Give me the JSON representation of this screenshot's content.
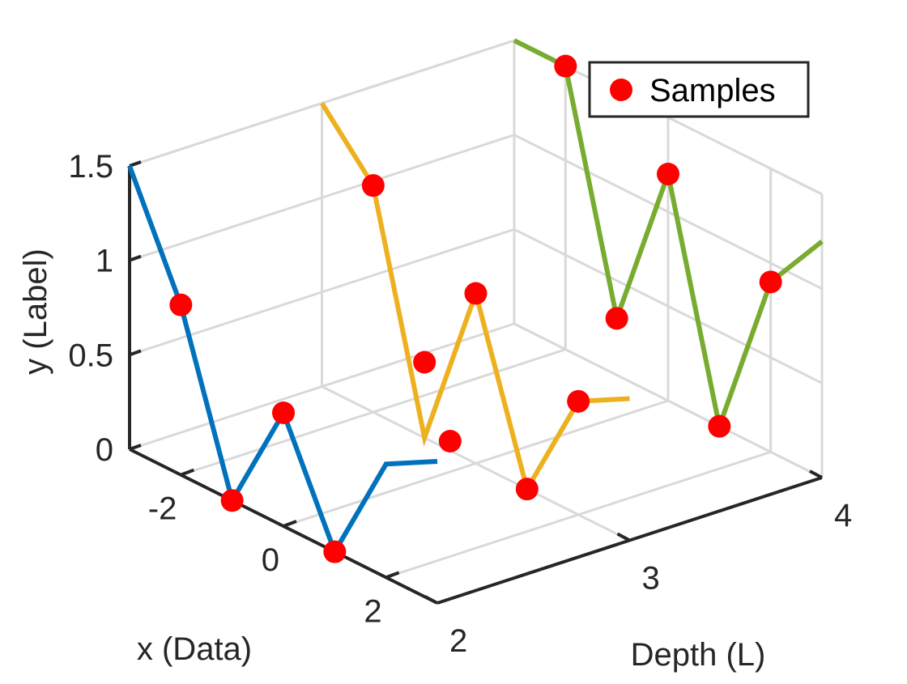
{
  "chart_data": {
    "type": "line",
    "view": "3d",
    "title": "",
    "xlabel": "x (Data)",
    "ylabel": "y (Label)",
    "zlabel": "Depth (L)",
    "xlim": [
      -3,
      3
    ],
    "ylim": [
      0,
      1.5
    ],
    "depth_lim": [
      2,
      4
    ],
    "x_ticks": [
      "-2",
      "0",
      "2"
    ],
    "y_ticks": [
      "0",
      "0.5",
      "1",
      "1.5"
    ],
    "depth_ticks": [
      "2",
      "3",
      "4"
    ],
    "grid": true,
    "legend": {
      "position": "top-right",
      "entries": [
        "Samples"
      ]
    },
    "series": [
      {
        "depth": 2,
        "color": "#0072BD",
        "x": [
          -3,
          -2,
          -1,
          0,
          1,
          2,
          3
        ],
        "y": [
          1.5,
          0.9,
          0,
          0.6,
          0,
          0.6,
          0.75
        ]
      },
      {
        "depth": 3,
        "color": "#EDB120",
        "x": [
          -3,
          -2,
          -1,
          0,
          1,
          2,
          3
        ],
        "y": [
          1.5,
          1.2,
          0,
          0.9,
          0,
          0.6,
          0.75
        ]
      },
      {
        "depth": 4,
        "color": "#77AC30",
        "x": [
          -3,
          -2,
          -1,
          0,
          1,
          2,
          3
        ],
        "y": [
          1.5,
          1.5,
          0.3,
          1.2,
          0,
          0.9,
          1.25
        ]
      }
    ],
    "samples": {
      "name": "Samples",
      "color": "#FF0000",
      "points": [
        {
          "x": -2,
          "y": 0.9,
          "depth": 2
        },
        {
          "x": -1,
          "y": 0,
          "depth": 2
        },
        {
          "x": 0,
          "y": 0.6,
          "depth": 2
        },
        {
          "x": 1,
          "y": 0,
          "depth": 2
        },
        {
          "x": -2,
          "y": 1.2,
          "depth": 3
        },
        {
          "x": -1,
          "y": 0.4,
          "depth": 3
        },
        {
          "x": -0.5,
          "y": 0.05,
          "depth": 3
        },
        {
          "x": 0,
          "y": 0.9,
          "depth": 3
        },
        {
          "x": 1,
          "y": 0,
          "depth": 3
        },
        {
          "x": 2,
          "y": 0.6,
          "depth": 3
        },
        {
          "x": -2,
          "y": 1.5,
          "depth": 4
        },
        {
          "x": -1,
          "y": 0.3,
          "depth": 4
        },
        {
          "x": 0,
          "y": 1.2,
          "depth": 4
        },
        {
          "x": 1,
          "y": 0,
          "depth": 4
        },
        {
          "x": 2,
          "y": 0.9,
          "depth": 4
        }
      ]
    }
  }
}
